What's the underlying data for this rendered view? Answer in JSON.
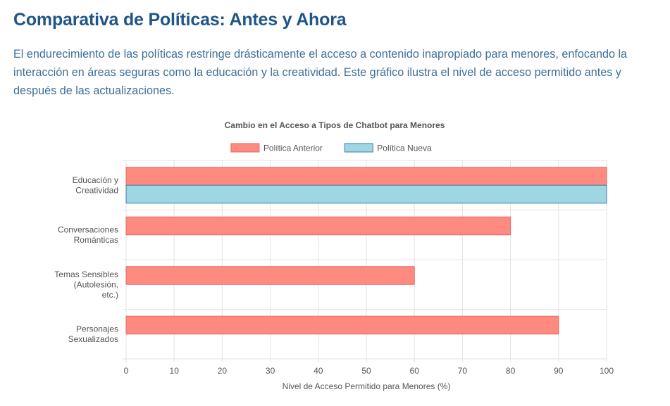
{
  "page": {
    "title": "Comparativa de Políticas: Antes y Ahora",
    "intro": "El endurecimiento de las políticas restringe drásticamente el acceso a contenido inapropiado para menores, enfocando la interacción en áreas seguras como la educación y la creatividad. Este gráfico ilustra el nivel de acceso permitido antes y después de las actualizaciones."
  },
  "chart_data": {
    "type": "bar",
    "orientation": "horizontal",
    "title": "Cambio en el Acceso a Tipos de Chatbot para Menores",
    "xlabel": "Nivel de Acceso Permitido para Menores (%)",
    "ylabel": "",
    "xlim": [
      0,
      100
    ],
    "ticks": [
      0,
      10,
      20,
      30,
      40,
      50,
      60,
      70,
      80,
      90,
      100
    ],
    "grid": true,
    "legend": "top",
    "categories": [
      [
        "Educación y",
        "Creatividad"
      ],
      [
        "Conversaciones",
        "Románticas"
      ],
      [
        "Temas Sensibles",
        "(Autolesión,",
        "etc.)"
      ],
      [
        "Personajes",
        "Sexualizados"
      ]
    ],
    "series": [
      {
        "name": "Política Anterior",
        "values": [
          100,
          80,
          60,
          90
        ],
        "fill": "#ff8a80",
        "stroke": "#e06a63"
      },
      {
        "name": "Política Nueva",
        "values": [
          100,
          0,
          0,
          0
        ],
        "fill": "#9fd6e4",
        "stroke": "#3d7a9e"
      }
    ]
  }
}
